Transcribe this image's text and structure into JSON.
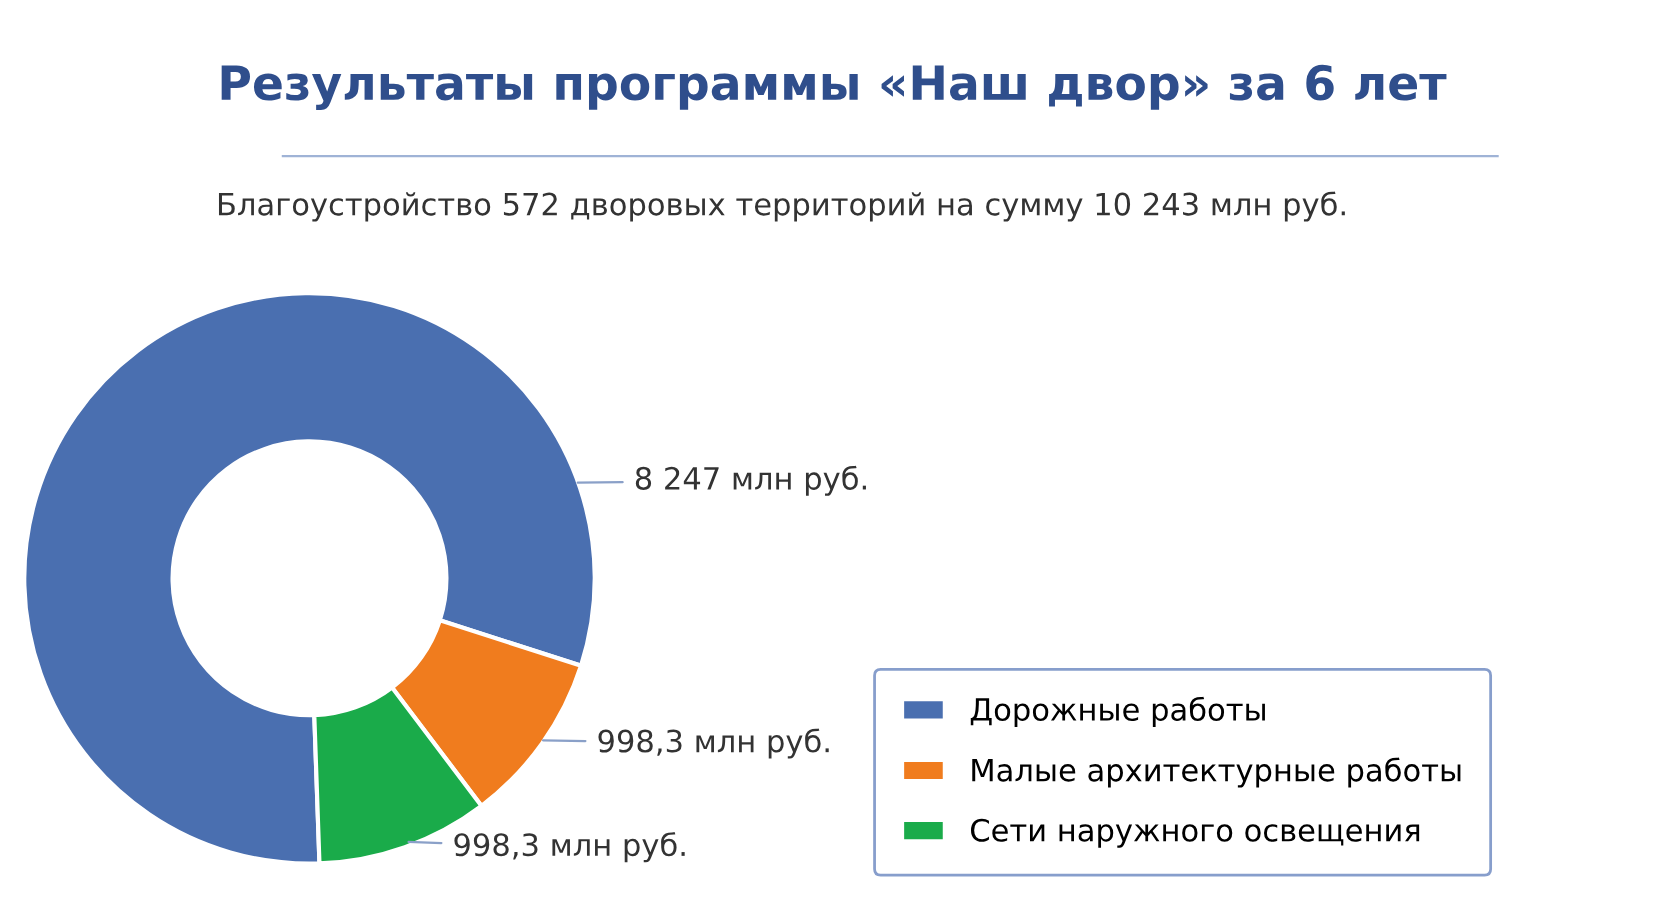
{
  "chart_data": {
    "type": "donut",
    "title": "Результаты программы «Наш двор» за 6 лет",
    "subtitle": "Благоустройство 572 дворовых территорий на сумму 10 243 млн руб.",
    "categories": [
      "Дорожные работы",
      "Малые архитектурные работы",
      "Сети наружного освещения"
    ],
    "values": [
      8247,
      998.3,
      998.3
    ],
    "colors": [
      "#4a6fb0",
      "#f07c1e",
      "#1aab4a"
    ],
    "value_labels": [
      "8 247 млн руб.",
      "998,3 млн руб.",
      "998,3 млн руб."
    ],
    "legend": "bottom right"
  }
}
